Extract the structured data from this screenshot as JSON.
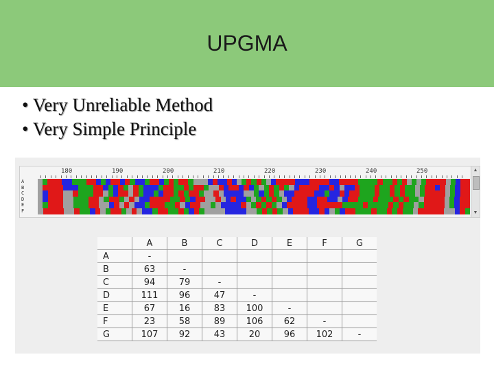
{
  "slide": {
    "title": "UPGMA",
    "bullets": [
      "• Very Unreliable Method",
      "• Very Simple Principle"
    ]
  },
  "alignment_viewer": {
    "ruler_labels": [
      "180",
      "190",
      "200",
      "210",
      "220",
      "230",
      "240",
      "250"
    ],
    "row_labels": [
      "A",
      "B",
      "C",
      "D",
      "E",
      "F"
    ],
    "sequences": [
      "GATTTCCAAATTCACTTCTACCATTCATATTAGGGCTCCTCGATATAGCTTTTCCCTTTTCCTTTTAAAATAATATGAGATTTTGACTT",
      "GTTTTCCCAAATTCACTAGTACCCATTAATATTAGGTCTTCTCAGATATAGCTTTTCCTCGCCTAAATAATATAAGATTCTGACTT",
      "GCTTTGGTAAATTGACTTGTACCACTTATATTAGGTGCCCCGGACATAGCCTTTTCCACCTCTTAAATAATATAAGATTTTGACTT",
      "GCTTTGGAAATTGATTAGTGCCTTTTAATACTTGGTGCTCCAGATATAGCTTTCCTTCCGCTTAAATAAATATAAGTTTTGACTT",
      "GATTTGGAAATTGGCTGTGCCATTTAATGCTTGGAGCCCCTGATATAGCTTTTCCTTTTTAAAATAAAATATAAGATTTTGACTT",
      "GTTTTGGTAACTGATTAGTGCCATTAATACTAGGGGCCCCGGATATAGCTTTCCTCGACTTAAATAATATAAGTTTTTGGCTA"
    ],
    "nucleotide_colors": {
      "A": "#1ea51e",
      "C": "#2525e0",
      "G": "#a0a0a0",
      "T": "#e01818"
    }
  },
  "distance_table": {
    "headers": [
      "",
      "A",
      "B",
      "C",
      "D",
      "E",
      "F",
      "G"
    ],
    "rows": [
      [
        "A",
        "-",
        "",
        "",
        "",
        "",
        "",
        ""
      ],
      [
        "B",
        "63",
        "-",
        "",
        "",
        "",
        "",
        ""
      ],
      [
        "C",
        "94",
        "79",
        "-",
        "",
        "",
        "",
        ""
      ],
      [
        "D",
        "111",
        "96",
        "47",
        "-",
        "",
        "",
        ""
      ],
      [
        "E",
        "67",
        "16",
        "83",
        "100",
        "-",
        "",
        ""
      ],
      [
        "F",
        "23",
        "58",
        "89",
        "106",
        "62",
        "-",
        ""
      ],
      [
        "G",
        "107",
        "92",
        "43",
        "20",
        "96",
        "102",
        "-"
      ]
    ]
  },
  "colors": {
    "header_bg": "#8cc97a"
  }
}
